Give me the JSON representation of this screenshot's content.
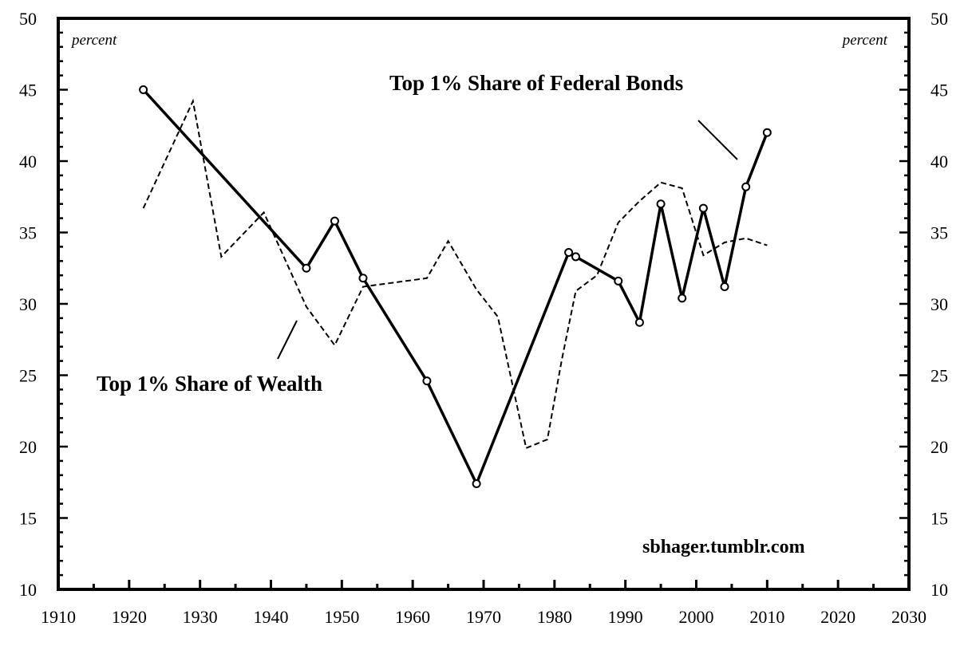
{
  "chart_data": {
    "type": "line",
    "title": "",
    "xlabel": "",
    "ylabel_left": "percent",
    "ylabel_right": "percent",
    "xlim": [
      1910,
      2030
    ],
    "ylim": [
      10,
      50
    ],
    "x_ticks": [
      1910,
      1920,
      1930,
      1940,
      1950,
      1960,
      1970,
      1980,
      1990,
      2000,
      2010,
      2020,
      2030
    ],
    "y_ticks": [
      10,
      15,
      20,
      25,
      30,
      35,
      40,
      45,
      50
    ],
    "grid": false,
    "series": [
      {
        "name": "Top 1% Share of Federal Bonds",
        "style": "solid",
        "markers": true,
        "color": "#000000",
        "x": [
          1922,
          1945,
          1949,
          1953,
          1962,
          1969,
          1982,
          1983,
          1989,
          1992,
          1995,
          1998,
          2001,
          2004,
          2007,
          2010
        ],
        "y": [
          45.0,
          32.5,
          35.8,
          31.8,
          24.6,
          17.4,
          33.6,
          33.3,
          31.6,
          28.7,
          37.0,
          30.4,
          36.7,
          31.2,
          38.2,
          42.0
        ]
      },
      {
        "name": "Top 1% Share of Wealth",
        "style": "dashed",
        "markers": false,
        "color": "#000000",
        "x": [
          1922,
          1929,
          1933,
          1939,
          1945,
          1949,
          1953,
          1962,
          1965,
          1969,
          1972,
          1976,
          1979,
          1981,
          1983,
          1986,
          1989,
          1992,
          1995,
          1998,
          2001,
          2004,
          2007,
          2010
        ],
        "y": [
          36.7,
          44.2,
          33.3,
          36.4,
          29.8,
          27.1,
          31.2,
          31.8,
          34.4,
          31.0,
          29.1,
          19.9,
          20.5,
          26.0,
          30.9,
          32.0,
          35.7,
          37.2,
          38.5,
          38.1,
          33.4,
          34.3,
          34.6,
          34.1
        ]
      }
    ],
    "annotations": [
      {
        "text": "Top 1% Share of Federal Bonds",
        "series": "Top 1% Share of Federal Bonds"
      },
      {
        "text": "Top 1% Share of Wealth",
        "series": "Top 1% Share of Wealth"
      },
      {
        "text": "sbhager.tumblr.com"
      }
    ]
  }
}
